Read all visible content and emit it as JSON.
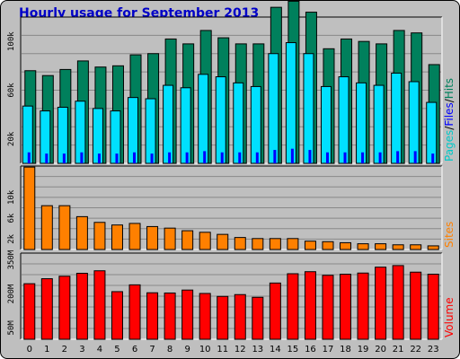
{
  "title": "Hourly usage for September 2013",
  "chart_data": [
    {
      "type": "bar",
      "panel": "hits",
      "categories": [
        "0",
        "1",
        "2",
        "3",
        "4",
        "5",
        "6",
        "7",
        "8",
        "9",
        "10",
        "11",
        "12",
        "13",
        "14",
        "15",
        "16",
        "17",
        "18",
        "19",
        "20",
        "21",
        "22",
        "23"
      ],
      "ylim": [
        0,
        120000
      ],
      "yticks": [
        "20k",
        "60k",
        "100k"
      ],
      "ytick_values": [
        20000,
        60000,
        100000
      ],
      "grid": true,
      "legend_text": [
        "Pages",
        "/",
        "Files",
        "/",
        "Hits"
      ],
      "legend_colors": [
        "#00c8c8",
        "#000000",
        "#0000ff",
        "#000000",
        "#00805c"
      ],
      "series": [
        {
          "name": "Hits",
          "color": "#00805c",
          "values": [
            76000,
            72000,
            77000,
            84000,
            79000,
            80000,
            89000,
            90000,
            102000,
            98000,
            109000,
            103000,
            98000,
            98000,
            128000,
            133000,
            124000,
            94000,
            102000,
            100000,
            98000,
            109000,
            107000,
            81000
          ]
        },
        {
          "name": "Files",
          "color": "#0000ff",
          "values": [
            9000,
            8000,
            8000,
            9000,
            8000,
            8000,
            9000,
            8000,
            9000,
            9000,
            10000,
            9000,
            9000,
            9000,
            11000,
            12000,
            11000,
            9000,
            9000,
            9000,
            9000,
            10000,
            10000,
            8000
          ]
        },
        {
          "name": "Pages",
          "color": "#00e0ff",
          "values": [
            47000,
            43000,
            46000,
            51000,
            45000,
            43000,
            54000,
            53000,
            64000,
            62000,
            73000,
            71000,
            66000,
            63000,
            90000,
            99000,
            90000,
            63000,
            71000,
            66000,
            64000,
            74000,
            67000,
            50000
          ]
        }
      ]
    },
    {
      "type": "bar",
      "panel": "sites",
      "categories": [
        "0",
        "1",
        "2",
        "3",
        "4",
        "5",
        "6",
        "7",
        "8",
        "9",
        "10",
        "11",
        "12",
        "13",
        "14",
        "15",
        "16",
        "17",
        "18",
        "19",
        "20",
        "21",
        "22",
        "23"
      ],
      "ylim": [
        0,
        16000
      ],
      "yticks": [
        "2k",
        "6k",
        "10k"
      ],
      "ytick_values": [
        2000,
        6000,
        10000
      ],
      "grid": true,
      "legend_text": [
        "Sites"
      ],
      "legend_colors": [
        "#ff8000"
      ],
      "series": [
        {
          "name": "Sites",
          "color": "#ff8000",
          "values": [
            15800,
            8400,
            8400,
            6300,
            5200,
            4700,
            5000,
            4400,
            4100,
            3600,
            3300,
            2900,
            2300,
            2100,
            2100,
            2100,
            1600,
            1500,
            1300,
            1100,
            1100,
            900,
            900,
            700
          ]
        }
      ]
    },
    {
      "type": "bar",
      "panel": "volume",
      "categories": [
        "0",
        "1",
        "2",
        "3",
        "4",
        "5",
        "6",
        "7",
        "8",
        "9",
        "10",
        "11",
        "12",
        "13",
        "14",
        "15",
        "16",
        "17",
        "18",
        "19",
        "20",
        "21",
        "22",
        "23"
      ],
      "ylim": [
        0,
        380
      ],
      "yticks": [
        "50M",
        "200M",
        "350M"
      ],
      "ytick_values": [
        50,
        200,
        350
      ],
      "units": "MB",
      "grid": true,
      "legend_text": [
        "Volume"
      ],
      "legend_colors": [
        "#ff0000"
      ],
      "series": [
        {
          "name": "Volume",
          "color": "#ff0000",
          "values": [
            245,
            267,
            278,
            291,
            302,
            210,
            240,
            205,
            204,
            217,
            202,
            189,
            197,
            185,
            248,
            289,
            298,
            282,
            287,
            292,
            318,
            325,
            296,
            287
          ]
        }
      ]
    }
  ]
}
